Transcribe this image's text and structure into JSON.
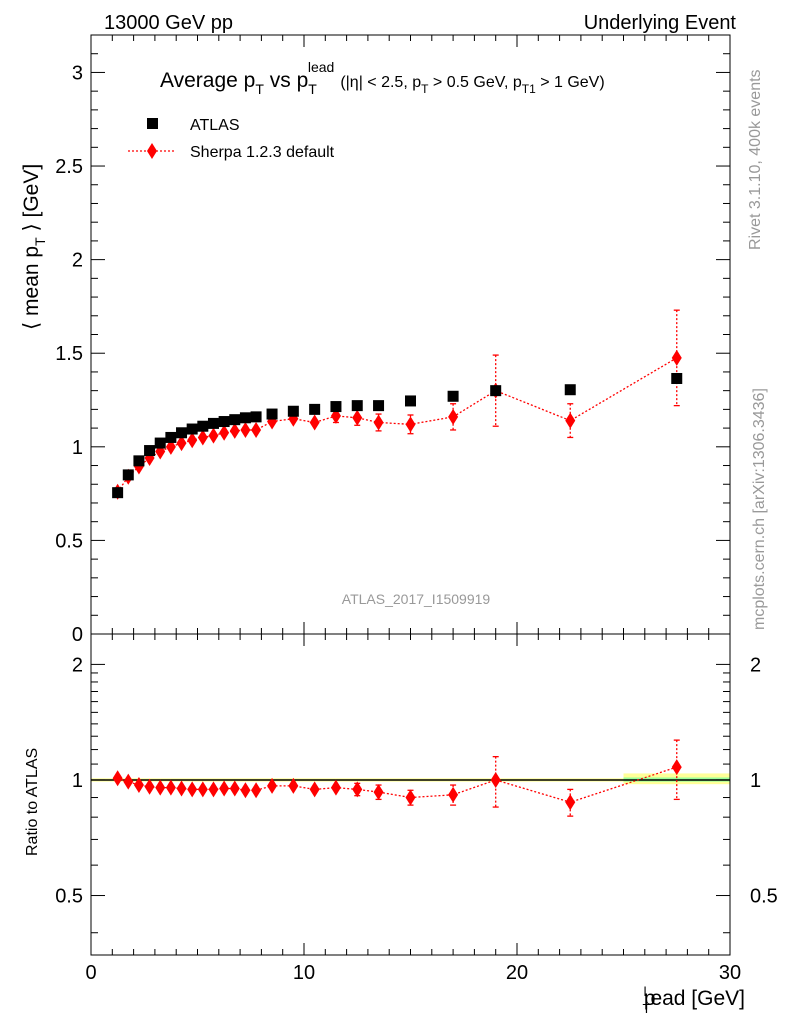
{
  "header": {
    "left": "13000 GeV pp",
    "right": "Underlying Event"
  },
  "side_text": {
    "rivet": "Rivet 3.1.10,  400k events",
    "mcplots": "mcplots.cern.ch [arXiv:1306.3436]"
  },
  "chart_data": [
    {
      "type": "scatter",
      "title_parts": {
        "main": "Average p",
        "main_sub": "T",
        "vs": " vs p",
        "vs_sub": "T",
        "vs_sup": "lead",
        "cuts_a": "(|η| < 2.5, p",
        "cuts_sub1": "T",
        "cuts_b": " > 0.5 GeV, p",
        "cuts_sub2": "T1",
        "cuts_c": " > 1 GeV)"
      },
      "ylabel": {
        "main": "⟨ mean p",
        "sub": "T",
        "tail": " ⟩ [GeV]"
      },
      "analysis_label": "ATLAS_2017_I1509919",
      "xlim": [
        0,
        30
      ],
      "ylim": [
        0,
        3.2
      ],
      "xticks": [
        0,
        10,
        20,
        30
      ],
      "yticks": [
        0,
        0.5,
        1,
        1.5,
        2,
        2.5,
        3
      ],
      "ytick_labels": [
        "0",
        "0.5",
        "1",
        "1.5",
        "2",
        "2.5",
        "3"
      ],
      "legend": [
        "ATLAS",
        "Sherpa 1.2.3 default"
      ],
      "series": [
        {
          "name": "ATLAS",
          "color": "#000000",
          "marker": "square",
          "x": [
            1.25,
            1.75,
            2.25,
            2.75,
            3.25,
            3.75,
            4.25,
            4.75,
            5.25,
            5.75,
            6.25,
            6.75,
            7.25,
            7.75,
            8.5,
            9.5,
            10.5,
            11.5,
            12.5,
            13.5,
            15,
            17,
            19,
            22.5,
            27.5
          ],
          "y": [
            0.755,
            0.85,
            0.925,
            0.98,
            1.02,
            1.05,
            1.075,
            1.095,
            1.11,
            1.125,
            1.135,
            1.145,
            1.155,
            1.16,
            1.175,
            1.19,
            1.2,
            1.215,
            1.22,
            1.22,
            1.245,
            1.27,
            1.3,
            1.305,
            1.365
          ]
        },
        {
          "name": "Sherpa 1.2.3 default",
          "color": "#ff0000",
          "marker": "diamond",
          "x": [
            1.25,
            1.75,
            2.25,
            2.75,
            3.25,
            3.75,
            4.25,
            4.75,
            5.25,
            5.75,
            6.25,
            6.75,
            7.25,
            7.75,
            8.5,
            9.5,
            10.5,
            11.5,
            12.5,
            13.5,
            15,
            17,
            19,
            22.5,
            27.5
          ],
          "y": [
            0.76,
            0.84,
            0.895,
            0.94,
            0.975,
            1.0,
            1.02,
            1.035,
            1.05,
            1.06,
            1.075,
            1.085,
            1.09,
            1.09,
            1.135,
            1.15,
            1.13,
            1.165,
            1.155,
            1.13,
            1.12,
            1.16,
            1.3,
            1.14,
            1.475
          ],
          "yerr": [
            0.01,
            0.01,
            0.01,
            0.01,
            0.01,
            0.01,
            0.01,
            0.012,
            0.012,
            0.014,
            0.015,
            0.016,
            0.018,
            0.02,
            0.025,
            0.03,
            0.03,
            0.035,
            0.04,
            0.045,
            0.05,
            0.07,
            0.19,
            0.09,
            0.255
          ]
        }
      ]
    },
    {
      "type": "scatter",
      "ylabel": "Ratio to ATLAS",
      "xlabel_parts": {
        "a": "p",
        "sub": "T",
        "sup": "l",
        "b": "ead [GeV]"
      },
      "xlim": [
        0,
        30
      ],
      "ylim": [
        0.35,
        2.4
      ],
      "yscale": "log",
      "xticks": [
        0,
        10,
        20,
        30
      ],
      "xtick_labels": [
        "0",
        "10",
        "20",
        "30"
      ],
      "yticks": [
        0.5,
        1,
        2
      ],
      "ytick_labels": [
        "0.5",
        "1",
        "2"
      ],
      "reference_line": 1,
      "bands": [
        {
          "x_from": 0,
          "x_to": 25,
          "low": 0.99,
          "high": 1.01,
          "color": "#ffff99"
        },
        {
          "x_from": 25,
          "x_to": 30,
          "low": 0.975,
          "high": 1.04,
          "color": "#ffff99"
        },
        {
          "x_from": 25,
          "x_to": 30,
          "low": 0.99,
          "high": 1.015,
          "color": "#99ff99"
        }
      ],
      "series": [
        {
          "name": "Sherpa 1.2.3 default / ATLAS",
          "color": "#ff0000",
          "marker": "diamond",
          "x": [
            1.25,
            1.75,
            2.25,
            2.75,
            3.25,
            3.75,
            4.25,
            4.75,
            5.25,
            5.75,
            6.25,
            6.75,
            7.25,
            7.75,
            8.5,
            9.5,
            10.5,
            11.5,
            12.5,
            13.5,
            15,
            17,
            19,
            22.5,
            27.5
          ],
          "y": [
            1.01,
            0.99,
            0.97,
            0.96,
            0.955,
            0.955,
            0.95,
            0.945,
            0.945,
            0.945,
            0.95,
            0.95,
            0.94,
            0.94,
            0.965,
            0.965,
            0.945,
            0.955,
            0.945,
            0.93,
            0.9,
            0.915,
            1.0,
            0.875,
            1.08
          ],
          "yerr": [
            0.012,
            0.012,
            0.012,
            0.012,
            0.012,
            0.012,
            0.012,
            0.013,
            0.013,
            0.014,
            0.015,
            0.016,
            0.017,
            0.018,
            0.022,
            0.025,
            0.025,
            0.03,
            0.035,
            0.04,
            0.04,
            0.055,
            0.15,
            0.07,
            0.19
          ]
        }
      ]
    }
  ]
}
